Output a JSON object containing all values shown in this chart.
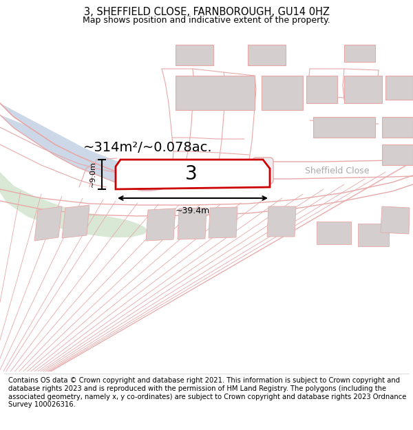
{
  "title_line1": "3, SHEFFIELD CLOSE, FARNBOROUGH, GU14 0HZ",
  "title_line2": "Map shows position and indicative extent of the property.",
  "area_label": "~314m²/~0.078ac.",
  "plot_number": "3",
  "width_label": "~39.4m",
  "height_label": "~9.0m",
  "street_label": "Sheffield Close",
  "footer_text": "Contains OS data © Crown copyright and database right 2021. This information is subject to Crown copyright and database rights 2023 and is reproduced with the permission of HM Land Registry. The polygons (including the associated geometry, namely x, y co-ordinates) are subject to Crown copyright and database rights 2023 Ordnance Survey 100026316.",
  "map_bg": "#f8f6f5",
  "highlight_plot_color": "#cc0000",
  "road_line_color": "#e8a8a8",
  "building_fill": "#d4cece",
  "building_edge": "#c8b8b8",
  "green_area_color": "#d8e8d5",
  "blue_road_color": "#ccd8e8",
  "title_fontsize": 10.5,
  "subtitle_fontsize": 9,
  "footer_fontsize": 7.2,
  "sheffield_label_color": "#aaaaaa"
}
